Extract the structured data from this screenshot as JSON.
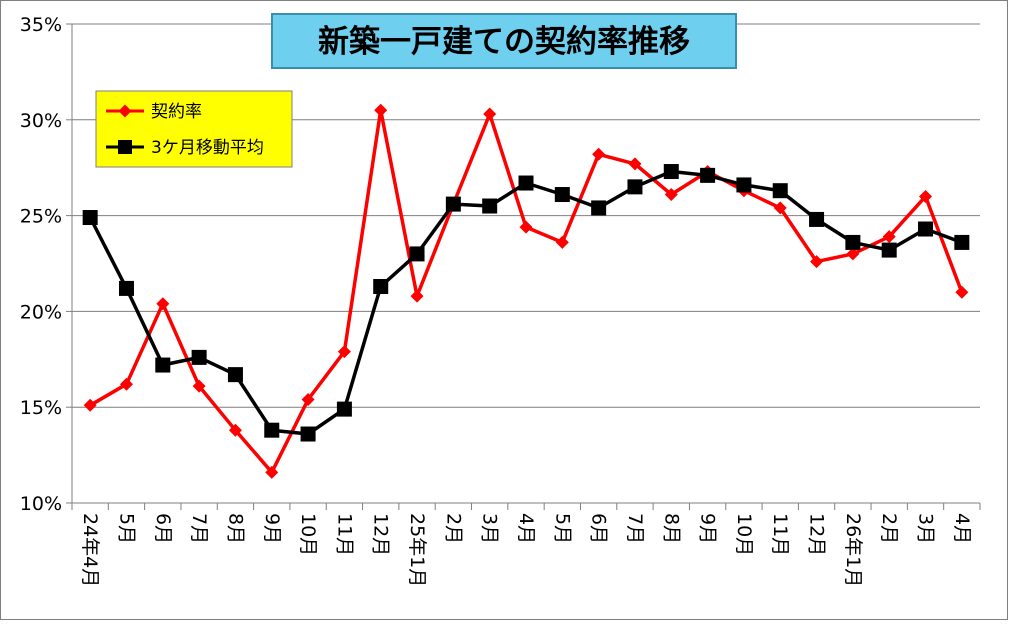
{
  "colors": {
    "series1": "#ff0000",
    "series2": "#000000",
    "title_bg": "#6fcfef",
    "legend_bg": "#ffff00",
    "grid": "#7f7f7f"
  },
  "chart_data": {
    "type": "line",
    "title": "新築一戸建ての契約率推移",
    "x": [
      "24年4月",
      "5月",
      "6月",
      "7月",
      "8月",
      "9月",
      "10月",
      "11月",
      "12月",
      "25年1月",
      "2月",
      "3月",
      "4月",
      "5月",
      "6月",
      "7月",
      "8月",
      "9月",
      "10月",
      "11月",
      "12月",
      "26年1月",
      "2月",
      "3月",
      "4月"
    ],
    "series": [
      {
        "name": "契約率",
        "color": "#ff0000",
        "marker": "diamond",
        "values": [
          15.1,
          16.2,
          20.4,
          16.1,
          13.8,
          11.6,
          15.4,
          17.9,
          30.5,
          20.8,
          25.6,
          30.3,
          24.4,
          23.6,
          28.2,
          27.7,
          26.1,
          27.3,
          26.3,
          25.4,
          22.6,
          23.0,
          23.9,
          26.0,
          21.0
        ]
      },
      {
        "name": "3ケ月移動平均",
        "color": "#000000",
        "marker": "square",
        "values": [
          24.9,
          21.2,
          17.2,
          17.6,
          16.7,
          13.8,
          13.6,
          14.9,
          21.3,
          23.0,
          25.6,
          25.5,
          26.7,
          26.1,
          25.4,
          26.5,
          27.3,
          27.1,
          26.6,
          26.3,
          24.8,
          23.6,
          23.2,
          24.3,
          23.6
        ]
      }
    ],
    "yticks": [
      "10%",
      "15%",
      "20%",
      "25%",
      "30%",
      "35%"
    ],
    "ylim": [
      10,
      35
    ],
    "grid": true,
    "legend_position": "top-left"
  }
}
